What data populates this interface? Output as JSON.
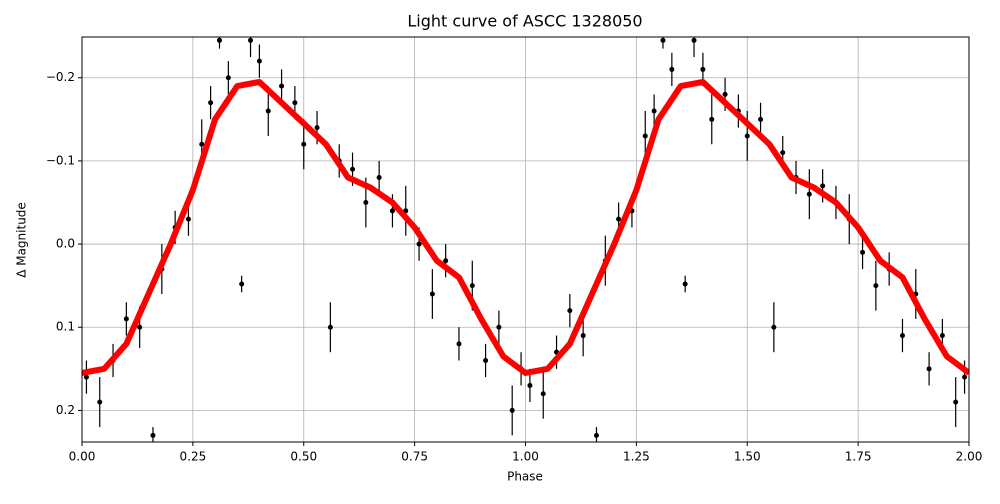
{
  "chart_data": {
    "type": "phase_curve",
    "title": "Light curve of ASCC 1328050",
    "x_label": "Phase",
    "y_label": "Δ Magnitude",
    "xlim": [
      0,
      2
    ],
    "ylim": [
      0.238,
      -0.249
    ],
    "grid": true,
    "xticks": [
      {
        "value": 0,
        "label": "0.00"
      },
      {
        "value": 0.25,
        "label": "0.25"
      },
      {
        "value": 0.5,
        "label": "0.50"
      },
      {
        "value": 0.75,
        "label": "0.75"
      },
      {
        "value": 1,
        "label": "1.00"
      },
      {
        "value": 1.25,
        "label": "1.25"
      },
      {
        "value": 1.5,
        "label": "1.50"
      },
      {
        "value": 1.75,
        "label": "1.75"
      },
      {
        "value": 2,
        "label": "2.00"
      }
    ],
    "yticks": [
      {
        "value": -0.2,
        "label": "−0.2"
      },
      {
        "value": -0.1,
        "label": "−0.1"
      },
      {
        "value": 0,
        "label": "0.0"
      },
      0.1,
      0.2
    ],
    "points": {
      "color": "#000000",
      "x": [
        0.01,
        0.04,
        0.07,
        0.1,
        0.13,
        0.16,
        0.18,
        0.21,
        0.24,
        0.27,
        0.29,
        0.31,
        0.33,
        0.36,
        0.38,
        0.4,
        0.42,
        0.45,
        0.48,
        0.5,
        0.53,
        0.56,
        0.58,
        0.61,
        0.64,
        0.67,
        0.7,
        0.73,
        0.76,
        0.79,
        0.82,
        0.85,
        0.88,
        0.91,
        0.94,
        0.97,
        0.99,
        1.01,
        1.04,
        1.07,
        1.1,
        1.13,
        1.16,
        1.18,
        1.21,
        1.24,
        1.27,
        1.29,
        1.31,
        1.33,
        1.36,
        1.38,
        1.4,
        1.42,
        1.45,
        1.48,
        1.5,
        1.53,
        1.56,
        1.58,
        1.61,
        1.64,
        1.67,
        1.7,
        1.73,
        1.76,
        1.79,
        1.82,
        1.85,
        1.88,
        1.91,
        1.94,
        1.97,
        1.99
      ],
      "values": [
        0.16,
        0.19,
        0.14,
        0.09,
        0.1,
        0.23,
        0.03,
        -0.02,
        -0.03,
        -0.12,
        -0.17,
        -0.245,
        -0.2,
        0.048,
        -0.245,
        -0.22,
        -0.16,
        -0.19,
        -0.17,
        -0.12,
        -0.14,
        0.1,
        -0.1,
        -0.09,
        -0.05,
        -0.08,
        -0.04,
        -0.04,
        0.0,
        0.06,
        0.02,
        0.12,
        0.05,
        0.14,
        0.1,
        0.2,
        0.15,
        0.17,
        0.18,
        0.13,
        0.08,
        0.11,
        0.23,
        0.02,
        -0.03,
        -0.04,
        -0.13,
        -0.16,
        -0.245,
        -0.21,
        0.048,
        -0.245,
        -0.21,
        -0.15,
        -0.18,
        -0.16,
        -0.13,
        -0.15,
        0.1,
        -0.11,
        -0.08,
        -0.06,
        -0.07,
        -0.05,
        -0.03,
        0.01,
        0.05,
        0.03,
        0.11,
        0.06,
        0.15,
        0.11,
        0.19,
        0.16
      ],
      "errors": [
        0.02,
        0.03,
        0.02,
        0.02,
        0.025,
        0.01,
        0.03,
        0.02,
        0.02,
        0.03,
        0.02,
        0.01,
        0.02,
        0.01,
        0.02,
        0.02,
        0.03,
        0.02,
        0.02,
        0.03,
        0.02,
        0.03,
        0.02,
        0.02,
        0.03,
        0.02,
        0.02,
        0.03,
        0.02,
        0.03,
        0.02,
        0.02,
        0.03,
        0.02,
        0.02,
        0.03,
        0.02,
        0.02,
        0.03,
        0.02,
        0.02,
        0.025,
        0.01,
        0.03,
        0.02,
        0.02,
        0.03,
        0.02,
        0.01,
        0.02,
        0.01,
        0.02,
        0.02,
        0.03,
        0.02,
        0.02,
        0.03,
        0.02,
        0.03,
        0.02,
        0.02,
        0.03,
        0.02,
        0.02,
        0.03,
        0.02,
        0.03,
        0.02,
        0.02,
        0.03,
        0.02,
        0.02,
        0.03,
        0.02
      ]
    },
    "curve": {
      "color": "#ff0000",
      "x": [
        0,
        0.05,
        0.1,
        0.15,
        0.2,
        0.25,
        0.3,
        0.35,
        0.4,
        0.45,
        0.5,
        0.55,
        0.6,
        0.65,
        0.7,
        0.75,
        0.8,
        0.85,
        0.9,
        0.95,
        1,
        1.05,
        1.1,
        1.15,
        1.2,
        1.25,
        1.3,
        1.35,
        1.4,
        1.45,
        1.5,
        1.55,
        1.6,
        1.65,
        1.7,
        1.75,
        1.8,
        1.85,
        1.9,
        1.95,
        2
      ],
      "values": [
        0.155,
        0.15,
        0.12,
        0.06,
        0.0,
        -0.065,
        -0.15,
        -0.19,
        -0.195,
        -0.17,
        -0.145,
        -0.12,
        -0.08,
        -0.068,
        -0.05,
        -0.02,
        0.02,
        0.04,
        0.09,
        0.135,
        0.155,
        0.15,
        0.12,
        0.06,
        0.0,
        -0.065,
        -0.15,
        -0.19,
        -0.195,
        -0.17,
        -0.145,
        -0.12,
        -0.08,
        -0.068,
        -0.05,
        -0.02,
        0.02,
        0.04,
        0.09,
        0.135,
        0.155
      ]
    }
  }
}
